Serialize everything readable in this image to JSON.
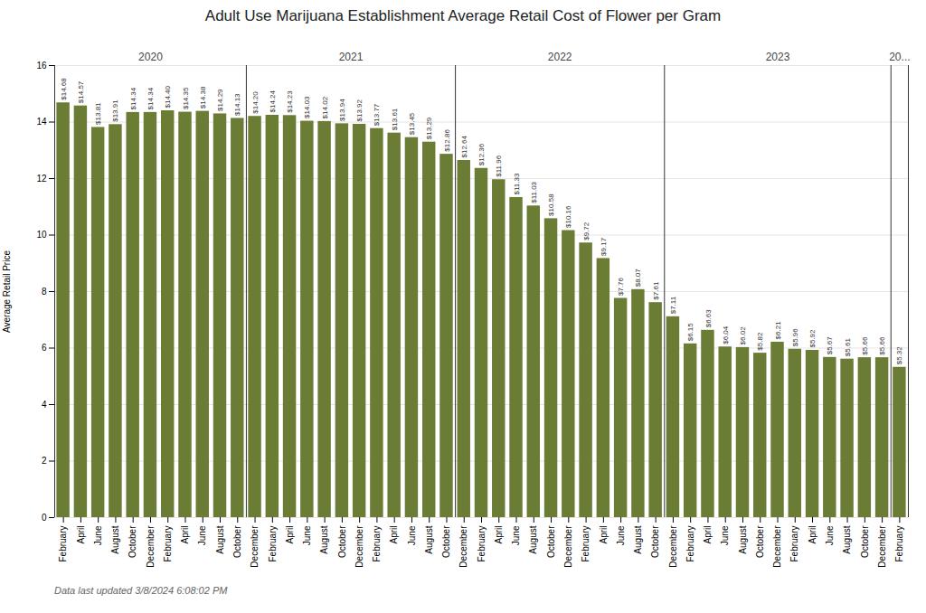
{
  "chart_data": {
    "type": "bar",
    "title": "Adult Use Marijuana Establishment Average Retail Cost of Flower per Gram",
    "ylabel": "Average Retail Price",
    "footer": "Data last updated 3/8/2024 6:08:02 PM",
    "color": "#6B7C35",
    "categories": [
      "February",
      "April",
      "June",
      "August",
      "October",
      "December",
      "February",
      "April",
      "June",
      "August",
      "October",
      "December",
      "February",
      "April",
      "June",
      "August",
      "October",
      "December",
      "February",
      "April",
      "June",
      "August",
      "October",
      "December",
      "February",
      "April",
      "June",
      "August",
      "October",
      "December",
      "February",
      "April",
      "June",
      "August",
      "October",
      "December",
      "February",
      "April",
      "June",
      "August",
      "October",
      "December",
      "February",
      "April",
      "June",
      "August",
      "October",
      "December",
      "February"
    ],
    "values": [
      14.68,
      14.57,
      13.81,
      13.91,
      14.34,
      14.34,
      14.4,
      14.35,
      14.38,
      14.29,
      14.13,
      14.2,
      14.24,
      14.23,
      14.03,
      14.02,
      13.94,
      13.92,
      13.77,
      13.61,
      13.45,
      13.29,
      12.86,
      12.64,
      12.36,
      11.96,
      11.33,
      11.03,
      10.58,
      10.16,
      9.72,
      9.17,
      7.76,
      8.07,
      7.61,
      7.11,
      6.15,
      6.63,
      6.04,
      6.02,
      5.82,
      6.21,
      5.96,
      5.92,
      5.67,
      5.61,
      5.66,
      5.66,
      5.32
    ],
    "value_labels": [
      "$14.68",
      "$14.57",
      "$13.81",
      "$13.91",
      "$14.34",
      "$14.34",
      "$14.40",
      "$14.35",
      "$14.38",
      "$14.29",
      "$14.13",
      "$14.20",
      "$14.24",
      "$14.23",
      "$14.03",
      "$14.02",
      "$13.94",
      "$13.92",
      "$13.77",
      "$13.61",
      "$13.45",
      "$13.29",
      "$12.86",
      "$12.64",
      "$12.36",
      "$11.96",
      "$11.33",
      "$11.03",
      "$10.58",
      "$10.16",
      "$9.72",
      "$9.17",
      "$7.76",
      "$8.07",
      "$7.61",
      "$7.11",
      "$6.15",
      "$6.63",
      "$6.04",
      "$6.02",
      "$5.82",
      "$6.21",
      "$5.96",
      "$5.92",
      "$5.67",
      "$5.61",
      "$5.66",
      "$5.66",
      "$5.32"
    ],
    "data_labels": true,
    "year_groups": [
      {
        "label": "2020",
        "start": 0,
        "end": 10
      },
      {
        "label": "2021",
        "start": 11,
        "end": 22
      },
      {
        "label": "2022",
        "start": 23,
        "end": 34
      },
      {
        "label": "2023",
        "start": 35,
        "end": 47
      },
      {
        "label": "20...",
        "start": 48,
        "end": 48
      }
    ],
    "ylim": [
      0,
      16
    ],
    "yticks": [
      0,
      2,
      4,
      6,
      8,
      10,
      12,
      14,
      16
    ],
    "grid": true
  }
}
